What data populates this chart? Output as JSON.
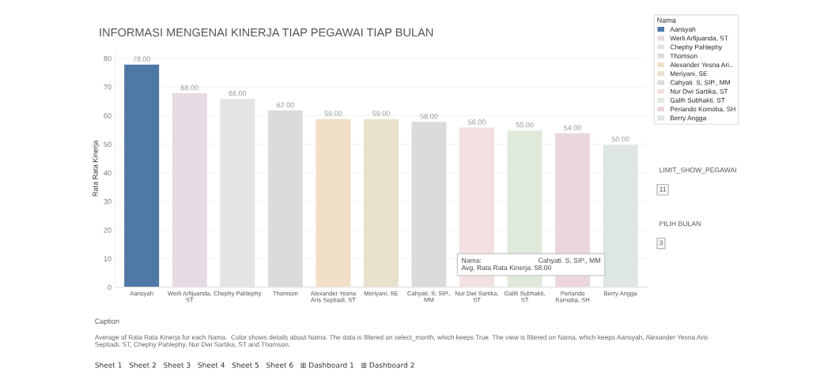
{
  "chart_data": {
    "type": "bar",
    "title": "INFORMASI MENGENAI KINERJA TIAP PEGAWAI TIAP BULAN",
    "ylabel": "Rata Rata Kinerja",
    "legend_title": "Nama",
    "categories": [
      "Aansyah",
      "Werli Arfijuanda,\nST",
      "Chephy Pahlephy",
      "Thomson",
      "Alexander Yesna\nAris Septiadi, ST",
      "Meriyani, SE",
      "Cahyati. S, SIP.,\nMM",
      "Nur Dwi Sartika,\nST",
      "Galih Subhakti,\nST",
      "Periando\nKomoba, SH",
      "Berry Angga"
    ],
    "series": [
      {
        "name": "Aansyah",
        "color": "#4e79a7",
        "values": [
          78,
          null,
          null,
          null,
          null,
          null,
          null,
          null,
          null,
          null,
          null
        ],
        "value_labels": [
          "78.00",
          null,
          null,
          null,
          null,
          null,
          null,
          null,
          null,
          null,
          null
        ]
      },
      {
        "name": "Werli Arfijuanda, ST",
        "color": "#e6dbe3",
        "values": [
          null,
          68,
          null,
          null,
          null,
          null,
          null,
          null,
          null,
          null,
          null
        ],
        "value_labels": [
          null,
          "68.00",
          null,
          null,
          null,
          null,
          null,
          null,
          null,
          null,
          null
        ]
      },
      {
        "name": "Chephy Pahlephy",
        "color": "#e5e4e2",
        "values": [
          null,
          null,
          66,
          null,
          null,
          null,
          null,
          null,
          null,
          null,
          null
        ],
        "value_labels": [
          null,
          null,
          "66.00",
          null,
          null,
          null,
          null,
          null,
          null,
          null,
          null
        ]
      },
      {
        "name": "Thomson",
        "color": "#dcdadb",
        "values": [
          null,
          null,
          null,
          62,
          null,
          null,
          null,
          null,
          null,
          null,
          null
        ],
        "value_labels": [
          null,
          null,
          null,
          "62.00",
          null,
          null,
          null,
          null,
          null,
          null,
          null
        ]
      },
      {
        "name": "Alexander Yesna Ari..",
        "color": "#f1dfc8",
        "values": [
          null,
          null,
          null,
          null,
          59,
          null,
          null,
          null,
          null,
          null,
          null
        ],
        "value_labels": [
          null,
          null,
          null,
          null,
          "59.00",
          null,
          null,
          null,
          null,
          null,
          null
        ]
      },
      {
        "name": "Meriyani, SE",
        "color": "#e8e1cc",
        "values": [
          null,
          null,
          null,
          null,
          null,
          59,
          null,
          null,
          null,
          null,
          null
        ],
        "value_labels": [
          null,
          null,
          null,
          null,
          null,
          "59.00",
          null,
          null,
          null,
          null,
          null
        ]
      },
      {
        "name": "Cahyati. S, SIP., MM",
        "color": "#dcdadb",
        "values": [
          null,
          null,
          null,
          null,
          null,
          null,
          58,
          null,
          null,
          null,
          null
        ],
        "value_labels": [
          null,
          null,
          null,
          null,
          null,
          null,
          "58.00",
          null,
          null,
          null,
          null
        ]
      },
      {
        "name": "Nur Dwi Sartika, ST",
        "color": "#f4e0e0",
        "values": [
          null,
          null,
          null,
          null,
          null,
          null,
          null,
          56,
          null,
          null,
          null
        ],
        "value_labels": [
          null,
          null,
          null,
          null,
          null,
          null,
          null,
          "56.00",
          null,
          null,
          null
        ]
      },
      {
        "name": "Galih Subhakti, ST",
        "color": "#dfeadb",
        "values": [
          null,
          null,
          null,
          null,
          null,
          null,
          null,
          null,
          55,
          null,
          null
        ],
        "value_labels": [
          null,
          null,
          null,
          null,
          null,
          null,
          null,
          null,
          "55.00",
          null,
          null
        ]
      },
      {
        "name": "Periando Komoba, SH",
        "color": "#ecd6de",
        "values": [
          null,
          null,
          null,
          null,
          null,
          null,
          null,
          null,
          null,
          54,
          null
        ],
        "value_labels": [
          null,
          null,
          null,
          null,
          null,
          null,
          null,
          null,
          null,
          "54.00",
          null
        ]
      },
      {
        "name": "Berry Angga",
        "color": "#dee6e4",
        "values": [
          null,
          null,
          null,
          null,
          null,
          null,
          null,
          null,
          null,
          null,
          50
        ],
        "value_labels": [
          null,
          null,
          null,
          null,
          null,
          null,
          null,
          null,
          null,
          null,
          "50.00"
        ]
      }
    ],
    "ylim": [
      0,
      83
    ],
    "yticks": [
      0,
      10,
      20,
      30,
      40,
      50,
      60,
      70,
      80
    ],
    "grid": "y",
    "legend": "right",
    "annotations": [
      "Caption",
      "Average of Rata Rata Kinerja for each Nama.  Color shows details about Nama. The data is filtered on select_month, which keeps True. The view is filtered on Nama, which keeps Aansyah, Alexander Yesna Aris\nSeptiadi, ST, Chephy Pahlephy, Nur Dwi Sartika, ST and Thomson.",
      "Nama:                              Cahyati. S, SIP., MM\nAvg. Rata Rata Kinerja: 58.00",
      "LIMIT_SHOW_PEGAWAI",
      "11",
      "PILIH BULAN",
      "3",
      "Sheet 1   Sheet 2   Sheet 3   Sheet 4   Sheet 5   Sheet 6   ⊞ Dashboard 1   ⊞ Dashboard 2"
    ]
  }
}
